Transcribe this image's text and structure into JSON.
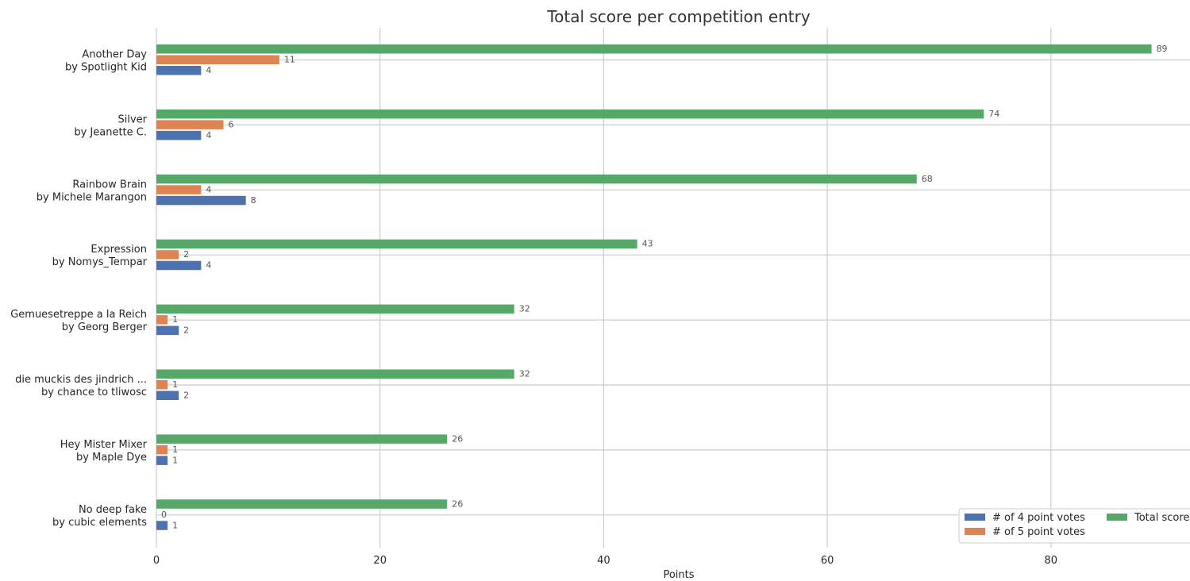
{
  "chart_data": {
    "type": "bar",
    "orientation": "horizontal",
    "title": "Total score per competition entry",
    "xlabel": "Points",
    "ylabel": "",
    "xlim": [
      0,
      92.5
    ],
    "xticks": [
      0,
      20,
      40,
      60,
      80
    ],
    "grid": true,
    "legend_position": "bottom-right",
    "categories": [
      [
        "Another Day",
        "by Spotlight Kid"
      ],
      [
        "Silver",
        "by Jeanette C."
      ],
      [
        "Rainbow Brain",
        "by Michele Marangon"
      ],
      [
        "Expression",
        "by Nomys_Tempar"
      ],
      [
        "Gemuesetreppe a la Reich",
        "by Georg Berger"
      ],
      [
        "die muckis des jindrich ...",
        "by chance to tliwosc"
      ],
      [
        "Hey Mister Mixer",
        "by Maple Dye"
      ],
      [
        "No deep fake",
        "by cubic elements"
      ]
    ],
    "series": [
      {
        "name": "# of 4 point votes",
        "color": "#4c72b0",
        "values": [
          4,
          4,
          8,
          4,
          2,
          2,
          1,
          1
        ]
      },
      {
        "name": "# of 5 point votes",
        "color": "#dd8452",
        "values": [
          11,
          6,
          4,
          2,
          1,
          1,
          1,
          0
        ]
      },
      {
        "name": "Total score",
        "color": "#55a868",
        "values": [
          89,
          74,
          68,
          43,
          32,
          32,
          26,
          26
        ]
      }
    ]
  }
}
